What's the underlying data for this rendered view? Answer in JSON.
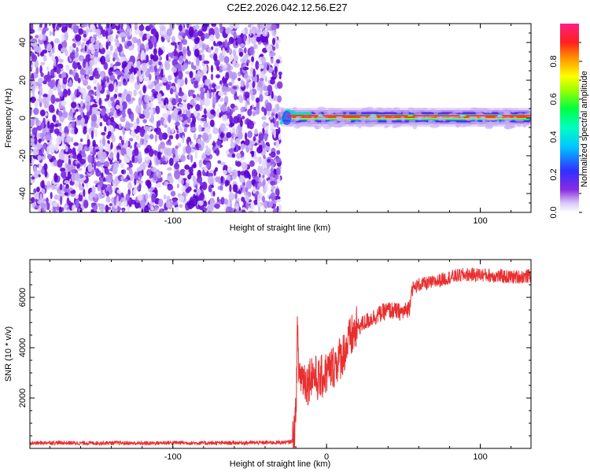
{
  "title": "C2E2.2026.042.12.56.E27",
  "chart_data": [
    {
      "type": "heatmap",
      "xlabel": "Height of straight line (km)",
      "ylabel": "Frequency (Hz)",
      "xlim": [
        -193,
        133
      ],
      "ylim": [
        -50,
        50
      ],
      "x_ticks": [
        -100,
        100
      ],
      "x_tick_labels": [
        "-100",
        "100"
      ],
      "y_ticks": [
        -40,
        -20,
        0,
        20,
        40
      ],
      "y_tick_labels": [
        "-40",
        "-20",
        "0",
        "20",
        "40"
      ],
      "noise_region_x": [
        -193,
        -30
      ],
      "signal_band_x": [
        -30,
        133
      ],
      "signal_center_freq": 0,
      "grid": false
    },
    {
      "type": "line",
      "xlabel": "Height of straight line (km)",
      "ylabel": "SNR (10 * v/v)",
      "xlim": [
        -193,
        133
      ],
      "ylim": [
        0,
        7500
      ],
      "x_ticks": [
        -100,
        0,
        100
      ],
      "x_tick_labels": [
        "-100",
        "0",
        "100"
      ],
      "y_ticks": [
        2000,
        4000,
        6000
      ],
      "y_tick_labels": [
        "2000",
        "4000",
        "6000"
      ],
      "color": "#e83030",
      "grid": false,
      "series": [
        {
          "x": [
            -193,
            -180,
            -160,
            -140,
            -120,
            -100,
            -80,
            -60,
            -40,
            -25,
            -22,
            -20,
            -19,
            -18,
            -15,
            -12,
            -10,
            -5,
            0,
            5,
            10,
            15,
            20,
            30,
            40,
            50,
            54,
            55,
            60,
            70,
            80,
            90,
            100,
            110,
            120,
            133
          ],
          "values": [
            200,
            230,
            210,
            220,
            200,
            230,
            210,
            220,
            230,
            240,
            300,
            1200,
            4600,
            3000,
            2800,
            2600,
            3000,
            2700,
            3000,
            3300,
            3700,
            4300,
            4800,
            5200,
            5500,
            5400,
            5600,
            6300,
            6500,
            6600,
            6800,
            6900,
            6900,
            6850,
            6800,
            6850
          ]
        }
      ]
    }
  ],
  "colorbar": {
    "label": "Normalized spectral amplitude",
    "ticks": [
      0.0,
      0.2,
      0.4,
      0.6,
      0.8
    ],
    "tick_labels": [
      "0.0",
      "0.2",
      "0.4",
      "0.6",
      "0.8"
    ],
    "range": [
      0,
      1
    ]
  }
}
